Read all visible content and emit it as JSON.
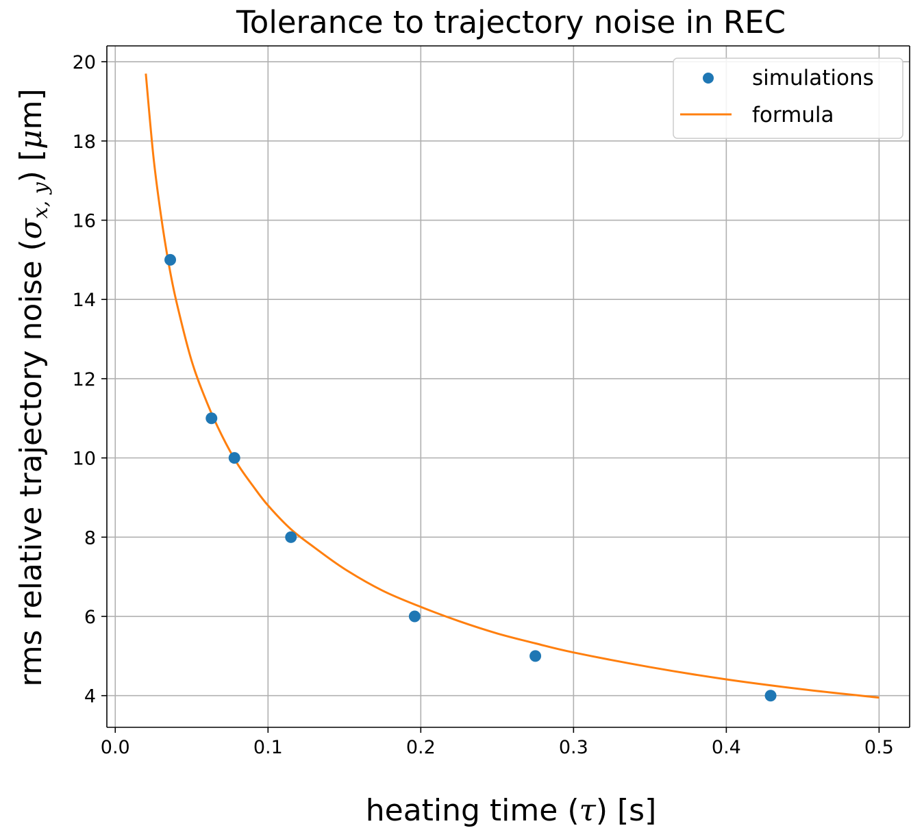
{
  "chart_data": {
    "type": "scatter",
    "title": "Tolerance to trajectory noise in REC",
    "xlabel": {
      "pre": "heating time (",
      "symbol": "τ",
      "post": ") [s]"
    },
    "ylabel": {
      "pre": "rms relative trajectory noise (",
      "symbol": "σ",
      "subscript": "x, y",
      "mid": ") [",
      "unit_symbol": "μ",
      "post": "m]"
    },
    "xlim": [
      -0.0055,
      0.52
    ],
    "ylim": [
      3.2,
      20.4
    ],
    "x_ticks": [
      0.0,
      0.1,
      0.2,
      0.3,
      0.4,
      0.5
    ],
    "x_tick_labels": [
      "0.0",
      "0.1",
      "0.2",
      "0.3",
      "0.4",
      "0.5"
    ],
    "y_ticks": [
      4,
      6,
      8,
      10,
      12,
      14,
      16,
      18,
      20
    ],
    "y_tick_labels": [
      "4",
      "6",
      "8",
      "10",
      "12",
      "14",
      "16",
      "18",
      "20"
    ],
    "grid": true,
    "legend_position": "top-right",
    "series": [
      {
        "name": "simulations",
        "kind": "scatter",
        "color": "#1f77b4",
        "x": [
          0.036,
          0.063,
          0.078,
          0.115,
          0.196,
          0.275,
          0.429
        ],
        "y": [
          15,
          11,
          10,
          8,
          6,
          5,
          4
        ]
      },
      {
        "name": "formula",
        "kind": "line",
        "color": "#ff7f0e",
        "x": [
          0.02,
          0.025,
          0.03,
          0.035,
          0.04,
          0.05,
          0.06,
          0.07,
          0.08,
          0.09,
          0.1,
          0.115,
          0.13,
          0.15,
          0.175,
          0.2,
          0.225,
          0.25,
          0.275,
          0.3,
          0.35,
          0.4,
          0.45,
          0.5
        ],
        "y": [
          19.7,
          17.6,
          16.1,
          14.9,
          13.95,
          12.45,
          11.4,
          10.55,
          9.85,
          9.3,
          8.8,
          8.2,
          7.75,
          7.2,
          6.65,
          6.24,
          5.88,
          5.57,
          5.32,
          5.09,
          4.72,
          4.41,
          4.16,
          3.95
        ]
      }
    ]
  }
}
